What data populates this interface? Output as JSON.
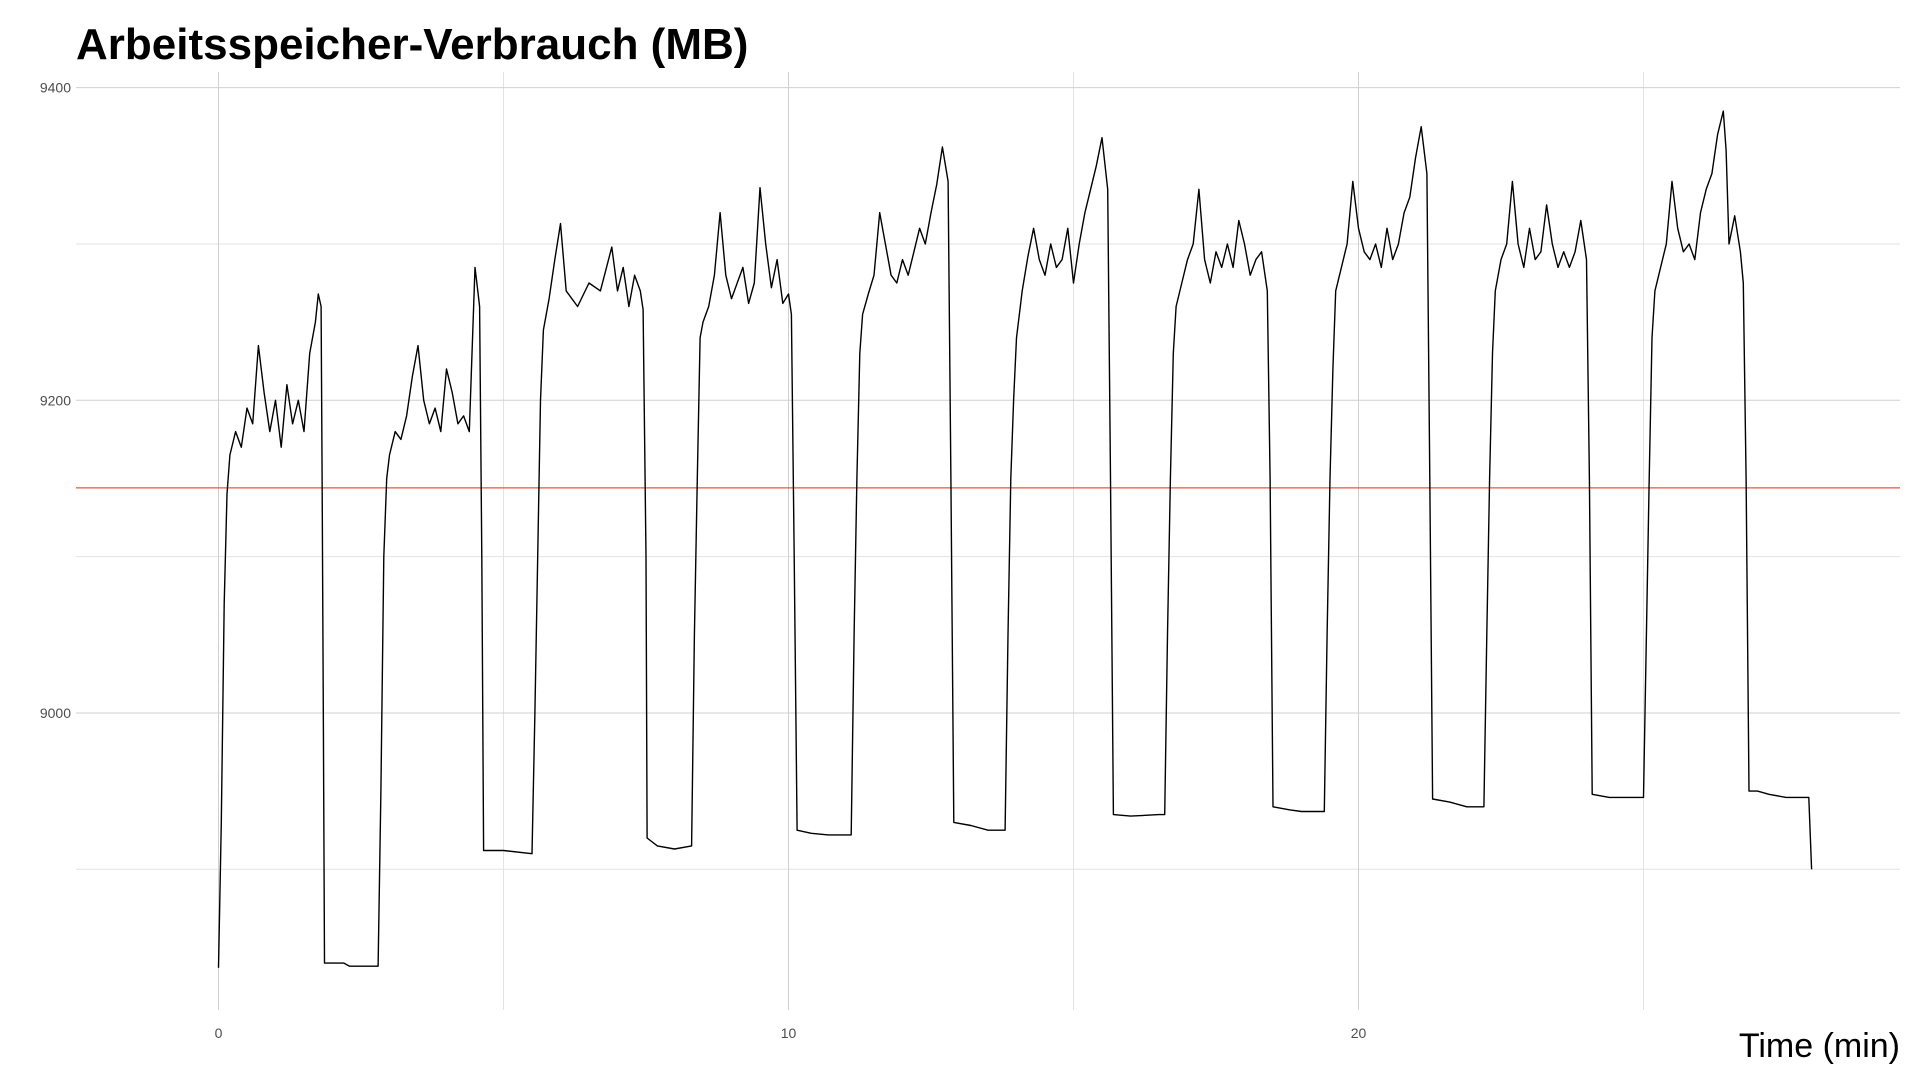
{
  "chart_data": {
    "type": "line",
    "title": "Arbeitsspeicher-Verbrauch (MB)",
    "xlabel": "Time (min)",
    "ylabel": "",
    "xlim": [
      -2.5,
      29.5
    ],
    "ylim": [
      8810,
      9410
    ],
    "x_ticks": [
      {
        "value": 0,
        "label": "0"
      },
      {
        "value": 10,
        "label": "10"
      },
      {
        "value": 20,
        "label": "20"
      }
    ],
    "x_minor_grid": [
      5,
      15,
      25
    ],
    "y_ticks": [
      {
        "value": 9000,
        "label": "9000"
      },
      {
        "value": 9200,
        "label": "9200"
      },
      {
        "value": 9400,
        "label": "9400"
      }
    ],
    "y_minor_grid": [
      8900,
      9100,
      9300
    ],
    "grid": true,
    "legend": "none",
    "reference_line": {
      "y": 9144,
      "color": "#e8553a"
    },
    "series": [
      {
        "color": "#000000",
        "points": [
          [
            0.0,
            8837
          ],
          [
            0.05,
            8930
          ],
          [
            0.1,
            9070
          ],
          [
            0.15,
            9140
          ],
          [
            0.2,
            9165
          ],
          [
            0.3,
            9180
          ],
          [
            0.4,
            9170
          ],
          [
            0.5,
            9195
          ],
          [
            0.6,
            9185
          ],
          [
            0.7,
            9235
          ],
          [
            0.8,
            9205
          ],
          [
            0.9,
            9180
          ],
          [
            1.0,
            9200
          ],
          [
            1.1,
            9170
          ],
          [
            1.2,
            9210
          ],
          [
            1.3,
            9185
          ],
          [
            1.4,
            9200
          ],
          [
            1.5,
            9180
          ],
          [
            1.6,
            9230
          ],
          [
            1.7,
            9250
          ],
          [
            1.75,
            9268
          ],
          [
            1.8,
            9260
          ],
          [
            1.82,
            9140
          ],
          [
            1.84,
            8990
          ],
          [
            1.86,
            8840
          ],
          [
            2.2,
            8840
          ],
          [
            2.3,
            8838
          ],
          [
            2.8,
            8838
          ],
          [
            2.85,
            8950
          ],
          [
            2.9,
            9100
          ],
          [
            2.95,
            9150
          ],
          [
            3.0,
            9165
          ],
          [
            3.1,
            9180
          ],
          [
            3.2,
            9175
          ],
          [
            3.3,
            9190
          ],
          [
            3.4,
            9215
          ],
          [
            3.5,
            9235
          ],
          [
            3.6,
            9200
          ],
          [
            3.7,
            9185
          ],
          [
            3.8,
            9195
          ],
          [
            3.9,
            9180
          ],
          [
            4.0,
            9220
          ],
          [
            4.1,
            9205
          ],
          [
            4.2,
            9185
          ],
          [
            4.3,
            9190
          ],
          [
            4.4,
            9180
          ],
          [
            4.5,
            9285
          ],
          [
            4.55,
            9270
          ],
          [
            4.58,
            9260
          ],
          [
            4.62,
            9100
          ],
          [
            4.65,
            8912
          ],
          [
            5.0,
            8912
          ],
          [
            5.5,
            8910
          ],
          [
            5.5,
            8910
          ],
          [
            5.55,
            9000
          ],
          [
            5.6,
            9100
          ],
          [
            5.65,
            9200
          ],
          [
            5.7,
            9245
          ],
          [
            5.8,
            9265
          ],
          [
            5.9,
            9290
          ],
          [
            6.0,
            9313
          ],
          [
            6.1,
            9270
          ],
          [
            6.3,
            9260
          ],
          [
            6.5,
            9275
          ],
          [
            6.7,
            9270
          ],
          [
            6.9,
            9298
          ],
          [
            7.0,
            9270
          ],
          [
            7.1,
            9285
          ],
          [
            7.2,
            9260
          ],
          [
            7.3,
            9280
          ],
          [
            7.4,
            9270
          ],
          [
            7.45,
            9258
          ],
          [
            7.5,
            9100
          ],
          [
            7.52,
            8920
          ],
          [
            7.7,
            8915
          ],
          [
            8.0,
            8913
          ],
          [
            8.3,
            8915
          ],
          [
            8.35,
            9050
          ],
          [
            8.4,
            9150
          ],
          [
            8.45,
            9240
          ],
          [
            8.5,
            9250
          ],
          [
            8.6,
            9260
          ],
          [
            8.7,
            9280
          ],
          [
            8.8,
            9320
          ],
          [
            8.9,
            9280
          ],
          [
            9.0,
            9265
          ],
          [
            9.1,
            9275
          ],
          [
            9.2,
            9285
          ],
          [
            9.3,
            9262
          ],
          [
            9.4,
            9275
          ],
          [
            9.5,
            9336
          ],
          [
            9.6,
            9300
          ],
          [
            9.7,
            9272
          ],
          [
            9.8,
            9290
          ],
          [
            9.9,
            9262
          ],
          [
            10.0,
            9268
          ],
          [
            10.05,
            9255
          ],
          [
            10.1,
            9100
          ],
          [
            10.15,
            8925
          ],
          [
            10.4,
            8923
          ],
          [
            10.7,
            8922
          ],
          [
            11.1,
            8922
          ],
          [
            11.15,
            9050
          ],
          [
            11.2,
            9150
          ],
          [
            11.25,
            9230
          ],
          [
            11.3,
            9255
          ],
          [
            11.4,
            9268
          ],
          [
            11.5,
            9280
          ],
          [
            11.6,
            9320
          ],
          [
            11.7,
            9300
          ],
          [
            11.8,
            9280
          ],
          [
            11.9,
            9275
          ],
          [
            12.0,
            9290
          ],
          [
            12.1,
            9280
          ],
          [
            12.2,
            9295
          ],
          [
            12.3,
            9310
          ],
          [
            12.4,
            9300
          ],
          [
            12.5,
            9320
          ],
          [
            12.6,
            9338
          ],
          [
            12.7,
            9362
          ],
          [
            12.8,
            9340
          ],
          [
            12.85,
            9150
          ],
          [
            12.9,
            8930
          ],
          [
            13.2,
            8928
          ],
          [
            13.5,
            8925
          ],
          [
            13.8,
            8925
          ],
          [
            13.85,
            9050
          ],
          [
            13.9,
            9150
          ],
          [
            13.95,
            9200
          ],
          [
            14.0,
            9240
          ],
          [
            14.1,
            9270
          ],
          [
            14.2,
            9292
          ],
          [
            14.3,
            9310
          ],
          [
            14.4,
            9290
          ],
          [
            14.5,
            9280
          ],
          [
            14.6,
            9300
          ],
          [
            14.7,
            9285
          ],
          [
            14.8,
            9290
          ],
          [
            14.9,
            9310
          ],
          [
            15.0,
            9275
          ],
          [
            15.1,
            9300
          ],
          [
            15.2,
            9320
          ],
          [
            15.3,
            9335
          ],
          [
            15.4,
            9350
          ],
          [
            15.5,
            9368
          ],
          [
            15.6,
            9335
          ],
          [
            15.65,
            9150
          ],
          [
            15.7,
            8935
          ],
          [
            16.0,
            8934
          ],
          [
            16.5,
            8935
          ],
          [
            16.6,
            8935
          ],
          [
            16.65,
            9050
          ],
          [
            16.7,
            9150
          ],
          [
            16.75,
            9230
          ],
          [
            16.8,
            9260
          ],
          [
            16.9,
            9275
          ],
          [
            17.0,
            9290
          ],
          [
            17.1,
            9300
          ],
          [
            17.2,
            9335
          ],
          [
            17.3,
            9290
          ],
          [
            17.4,
            9275
          ],
          [
            17.5,
            9295
          ],
          [
            17.6,
            9285
          ],
          [
            17.7,
            9300
          ],
          [
            17.8,
            9285
          ],
          [
            17.9,
            9315
          ],
          [
            18.0,
            9300
          ],
          [
            18.1,
            9280
          ],
          [
            18.2,
            9290
          ],
          [
            18.3,
            9295
          ],
          [
            18.4,
            9270
          ],
          [
            18.45,
            9150
          ],
          [
            18.5,
            8940
          ],
          [
            18.8,
            8938
          ],
          [
            19.0,
            8937
          ],
          [
            19.4,
            8937
          ],
          [
            19.45,
            9050
          ],
          [
            19.5,
            9150
          ],
          [
            19.55,
            9220
          ],
          [
            19.6,
            9270
          ],
          [
            19.7,
            9285
          ],
          [
            19.8,
            9300
          ],
          [
            19.9,
            9340
          ],
          [
            20.0,
            9310
          ],
          [
            20.1,
            9295
          ],
          [
            20.2,
            9290
          ],
          [
            20.3,
            9300
          ],
          [
            20.4,
            9285
          ],
          [
            20.5,
            9310
          ],
          [
            20.6,
            9290
          ],
          [
            20.7,
            9300
          ],
          [
            20.8,
            9320
          ],
          [
            20.9,
            9330
          ],
          [
            21.0,
            9355
          ],
          [
            21.1,
            9375
          ],
          [
            21.2,
            9345
          ],
          [
            21.25,
            9150
          ],
          [
            21.3,
            8945
          ],
          [
            21.6,
            8943
          ],
          [
            21.9,
            8940
          ],
          [
            22.2,
            8940
          ],
          [
            22.25,
            9050
          ],
          [
            22.3,
            9150
          ],
          [
            22.35,
            9230
          ],
          [
            22.4,
            9270
          ],
          [
            22.5,
            9290
          ],
          [
            22.6,
            9300
          ],
          [
            22.7,
            9340
          ],
          [
            22.8,
            9300
          ],
          [
            22.9,
            9285
          ],
          [
            23.0,
            9310
          ],
          [
            23.1,
            9290
          ],
          [
            23.2,
            9295
          ],
          [
            23.3,
            9325
          ],
          [
            23.4,
            9300
          ],
          [
            23.5,
            9285
          ],
          [
            23.6,
            9295
          ],
          [
            23.7,
            9285
          ],
          [
            23.8,
            9295
          ],
          [
            23.9,
            9315
          ],
          [
            24.0,
            9290
          ],
          [
            24.05,
            9150
          ],
          [
            24.1,
            8948
          ],
          [
            24.4,
            8946
          ],
          [
            24.7,
            8946
          ],
          [
            25.0,
            8946
          ],
          [
            25.05,
            9050
          ],
          [
            25.1,
            9150
          ],
          [
            25.15,
            9240
          ],
          [
            25.2,
            9270
          ],
          [
            25.3,
            9285
          ],
          [
            25.4,
            9300
          ],
          [
            25.5,
            9340
          ],
          [
            25.6,
            9310
          ],
          [
            25.7,
            9295
          ],
          [
            25.8,
            9300
          ],
          [
            25.9,
            9290
          ],
          [
            26.0,
            9320
          ],
          [
            26.1,
            9335
          ],
          [
            26.2,
            9345
          ],
          [
            26.3,
            9370
          ],
          [
            26.4,
            9385
          ],
          [
            26.45,
            9360
          ],
          [
            26.5,
            9300
          ],
          [
            26.6,
            9318
          ],
          [
            26.7,
            9295
          ],
          [
            26.75,
            9275
          ],
          [
            26.8,
            9150
          ],
          [
            26.85,
            8950
          ],
          [
            27.0,
            8950
          ],
          [
            27.2,
            8948
          ],
          [
            27.5,
            8946
          ],
          [
            27.9,
            8946
          ],
          [
            27.95,
            8900
          ]
        ]
      }
    ]
  }
}
